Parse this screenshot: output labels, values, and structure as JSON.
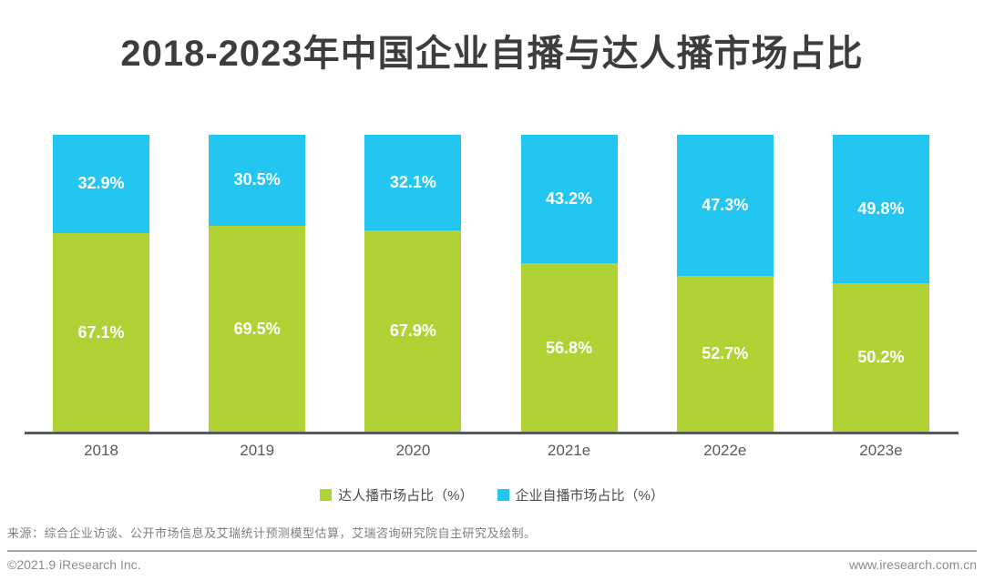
{
  "page": {
    "title": "2018-2023年中国企业自播与达人播市场占比",
    "source_note": "来源：综合企业访谈、公开市场信息及艾瑞统计预测模型估算，艾瑞咨询研究院自主研究及绘制。",
    "footer_left": "©2021.9 iResearch Inc.",
    "footer_right": "www.iresearch.com.cn"
  },
  "chart_data": {
    "type": "bar",
    "stacked": true,
    "title": "2018-2023年中国企业自播与达人播市场占比",
    "categories": [
      "2018",
      "2019",
      "2020",
      "2021e",
      "2022e",
      "2023e"
    ],
    "series": [
      {
        "name": "达人播市场占比（%）",
        "color": "#B1D235",
        "values": [
          67.1,
          69.5,
          67.9,
          56.8,
          52.7,
          50.2
        ]
      },
      {
        "name": "企业自播市场占比（%）",
        "color": "#23C5F1",
        "values": [
          32.9,
          30.5,
          32.1,
          43.2,
          47.3,
          49.8
        ]
      }
    ],
    "value_suffix": "%",
    "ylim": [
      0,
      100
    ],
    "grid": false,
    "legend_position": "bottom",
    "colors": {
      "title_text": "#3D3D3D",
      "axis_line": "#58595B",
      "tick_text": "#595959",
      "bar_label_text": "#FFFFFF"
    }
  }
}
